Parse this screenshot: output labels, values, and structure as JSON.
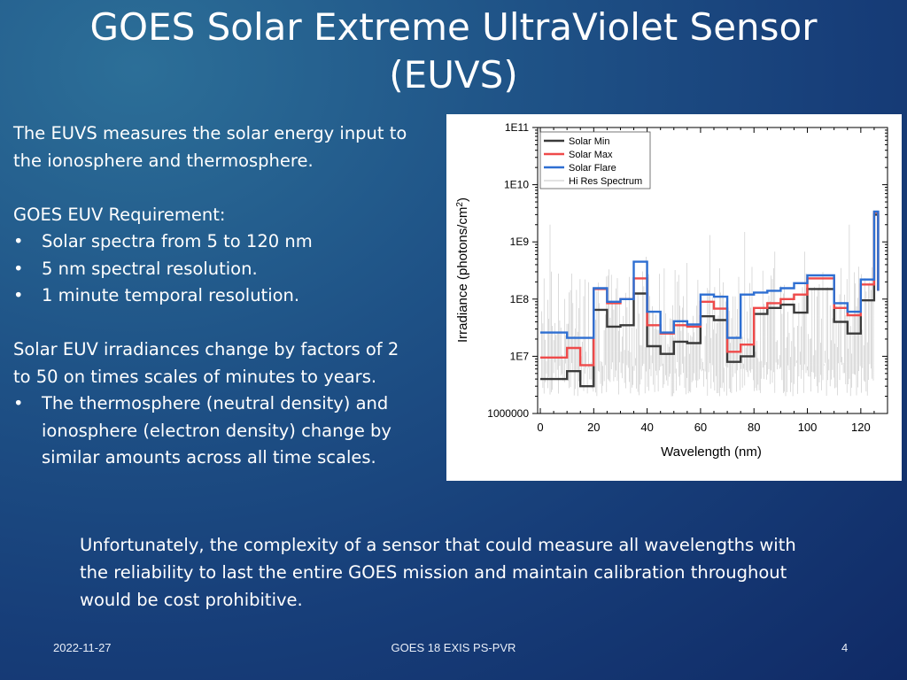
{
  "slide": {
    "title_line1": "GOES Solar Extreme UltraViolet Sensor",
    "title_line2": "(EUVS)",
    "intro_line1": "The EUVS measures the solar energy input to",
    "intro_line2": "the ionosphere and thermosphere.",
    "req_heading": "GOES EUV Requirement:",
    "req_bullets": [
      "Solar spectra from 5 to 120 nm",
      "5 nm spectral resolution.",
      "1 minute temporal resolution."
    ],
    "change_line1": "Solar EUV irradiances change by factors of 2",
    "change_line2": "to 50 on times scales of minutes to years.",
    "change_bullet_line1": "The thermosphere (neutral density) and",
    "change_bullet_line2": "ionosphere (electron density) change by",
    "change_bullet_line3": "similar amounts across all time scales.",
    "bullet_glyph": "•",
    "bottom_line1": "Unfortunately, the complexity of a sensor that could measure all wavelengths  with",
    "bottom_line2": "the reliability to last the entire GOES mission and maintain calibration throughout",
    "bottom_line3": "would be cost prohibitive."
  },
  "footer": {
    "date": "2022-11-27",
    "center": "GOES 18 EXIS PS-PVR",
    "page": "4"
  },
  "colors": {
    "solar_min": "#3a3a3a",
    "solar_max": "#ef4a4a",
    "solar_flare": "#2e6fd2",
    "hi_res": "#c4c4c4"
  },
  "chart_data": {
    "type": "line",
    "xlabel": "Wavelength (nm)",
    "ylabel": "Irradiance (photons/cm²)",
    "ylabel_main": "Irradiance (photons/cm",
    "ylabel_sup": "2",
    "ylabel_end": ")",
    "xlim": [
      -1,
      130
    ],
    "ylim": [
      1000000,
      100000000000
    ],
    "yscale": "log",
    "xticks": [
      0,
      20,
      40,
      60,
      80,
      100,
      120
    ],
    "xtick_labels": [
      "0",
      "20",
      "40",
      "60",
      "80",
      "100",
      "120"
    ],
    "yticks": [
      1000000,
      10000000,
      100000000,
      1000000000,
      10000000000,
      100000000000
    ],
    "ytick_labels": [
      "1000000",
      "1E7",
      "1E8",
      "1E9",
      "1E10",
      "1E11"
    ],
    "legend_position": "top-left",
    "step_edges": [
      0,
      5,
      10,
      15,
      20,
      25,
      30,
      35,
      40,
      45,
      50,
      55,
      60,
      65,
      70,
      75,
      80,
      85,
      90,
      95,
      100,
      105,
      110,
      115,
      120,
      125
    ],
    "series": [
      {
        "name": "Solar Min",
        "key": "solar_min",
        "values": [
          4000000.0,
          4000000.0,
          5500000.0,
          3000000.0,
          65000000.0,
          33000000.0,
          35000000.0,
          125000000.0,
          15000000.0,
          11000000.0,
          18000000.0,
          17000000.0,
          50000000.0,
          43000000.0,
          8000000.0,
          10000000.0,
          55000000.0,
          70000000.0,
          80000000.0,
          58000000.0,
          150000000.0,
          150000000.0,
          40000000.0,
          25000000.0,
          95000000.0,
          3000000000.0
        ]
      },
      {
        "name": "Solar Max",
        "key": "solar_max",
        "values": [
          9500000.0,
          9500000.0,
          14000000.0,
          7000000.0,
          150000000.0,
          85000000.0,
          100000000.0,
          230000000.0,
          35000000.0,
          25000000.0,
          35000000.0,
          33000000.0,
          90000000.0,
          68000000.0,
          12000000.0,
          16000000.0,
          70000000.0,
          85000000.0,
          100000000.0,
          120000000.0,
          230000000.0,
          230000000.0,
          70000000.0,
          52000000.0,
          180000000.0,
          3300000000.0
        ]
      },
      {
        "name": "Solar Flare",
        "key": "solar_flare",
        "values": [
          26000000.0,
          26000000.0,
          21000000.0,
          21000000.0,
          155000000.0,
          90000000.0,
          100000000.0,
          450000000.0,
          60000000.0,
          26000000.0,
          41000000.0,
          36000000.0,
          120000000.0,
          110000000.0,
          21000000.0,
          120000000.0,
          130000000.0,
          140000000.0,
          155000000.0,
          190000000.0,
          260000000.0,
          260000000.0,
          85000000.0,
          60000000.0,
          220000000.0,
          3400000000.0
        ]
      },
      {
        "name": "Hi Res Spectrum",
        "key": "hi_res",
        "values": []
      }
    ]
  }
}
